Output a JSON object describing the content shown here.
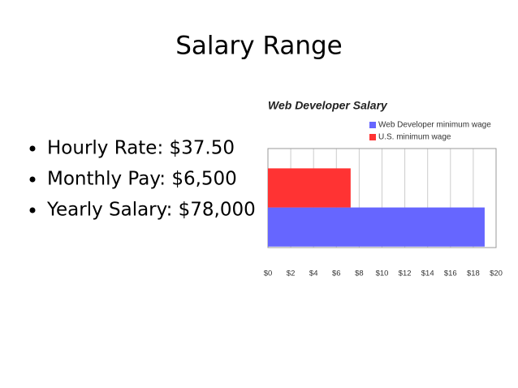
{
  "slide": {
    "title": "Salary Range",
    "bullets": [
      "Hourly Rate: $37.50",
      "Monthly Pay: $6,500",
      "Yearly Salary: $78,000"
    ]
  },
  "chart_data": {
    "type": "bar",
    "orientation": "horizontal",
    "title": "Web Developer Salary",
    "categories": [
      null
    ],
    "series": [
      {
        "name": "Web Developer minimum wage",
        "color": "#6666ff",
        "values": [
          19
        ]
      },
      {
        "name": "U.S. minimum wage",
        "color": "#ff3333",
        "values": [
          7.25
        ]
      }
    ],
    "xlim": [
      0,
      20
    ],
    "xticks": [
      {
        "value": 0,
        "label": "$0"
      },
      {
        "value": 2,
        "label": "$2"
      },
      {
        "value": 4,
        "label": "$4"
      },
      {
        "value": 6,
        "label": "$6"
      },
      {
        "value": 8,
        "label": "$8"
      },
      {
        "value": 10,
        "label": "$10"
      },
      {
        "value": 12,
        "label": "$12"
      },
      {
        "value": 14,
        "label": "$14"
      },
      {
        "value": 16,
        "label": "$16"
      },
      {
        "value": 18,
        "label": "$18"
      },
      {
        "value": 20,
        "label": "$20"
      }
    ],
    "grid": true,
    "legend": "top-right"
  }
}
